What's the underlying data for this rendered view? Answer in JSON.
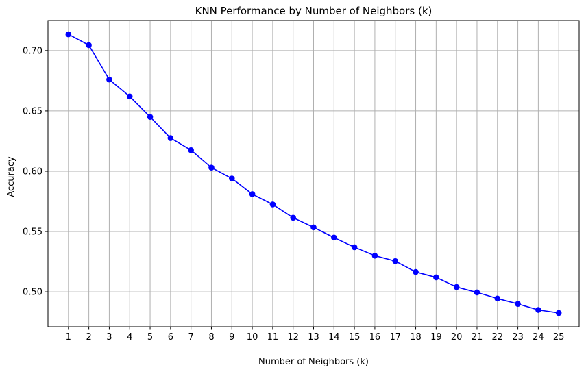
{
  "chart_data": {
    "type": "line",
    "title": "KNN Performance by Number of Neighbors (k)",
    "xlabel": "Number of Neighbors (k)",
    "ylabel": "Accuracy",
    "x": [
      1,
      2,
      3,
      4,
      5,
      6,
      7,
      8,
      9,
      10,
      11,
      12,
      13,
      14,
      15,
      16,
      17,
      18,
      19,
      20,
      21,
      22,
      23,
      24,
      25
    ],
    "x_tick_labels": [
      "1",
      "2",
      "3",
      "4",
      "5",
      "6",
      "7",
      "8",
      "9",
      "10",
      "11",
      "12",
      "13",
      "14",
      "15",
      "16",
      "17",
      "18",
      "19",
      "20",
      "21",
      "22",
      "23",
      "24",
      "25"
    ],
    "series": [
      {
        "values": [
          0.7135,
          0.7045,
          0.676,
          0.662,
          0.645,
          0.6275,
          0.6175,
          0.603,
          0.594,
          0.581,
          0.5725,
          0.5615,
          0.5535,
          0.545,
          0.537,
          0.53,
          0.5255,
          0.5165,
          0.512,
          0.504,
          0.4995,
          0.4945,
          0.49,
          0.485,
          0.4825
        ],
        "color": "#0000ff",
        "marker": "circle"
      }
    ],
    "xlim": [
      0,
      26
    ],
    "ylim": [
      0.4711,
      0.7249
    ],
    "y_ticks": [
      0.5,
      0.55,
      0.6,
      0.65,
      0.7
    ],
    "y_tick_labels": [
      "0.50",
      "0.55",
      "0.60",
      "0.65",
      "0.70"
    ],
    "grid": true,
    "legend": "none"
  }
}
